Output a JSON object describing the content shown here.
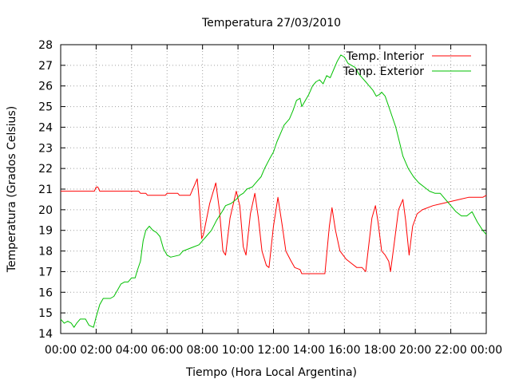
{
  "chart_data": {
    "type": "line",
    "title": "Temperatura 27/03/2010",
    "xlabel": "Tiempo (Hora Local Argentina)",
    "ylabel": "Temperatura (Grados Celsius)",
    "xlim": [
      0,
      24
    ],
    "ylim": [
      14,
      28
    ],
    "grid": true,
    "legend_position": "top-right",
    "x_ticks": [
      "00:00",
      "02:00",
      "04:00",
      "06:00",
      "08:00",
      "10:00",
      "12:00",
      "14:00",
      "16:00",
      "18:00",
      "20:00",
      "22:00",
      "00:00"
    ],
    "y_ticks": [
      "14",
      "15",
      "16",
      "17",
      "18",
      "19",
      "20",
      "21",
      "22",
      "23",
      "24",
      "25",
      "26",
      "27",
      "28"
    ],
    "series": [
      {
        "name": "Temp. Interior",
        "color": "#ff0000",
        "points": [
          [
            0,
            20.9
          ],
          [
            1.5,
            20.9
          ],
          [
            1.9,
            20.9
          ],
          [
            2.0,
            21.1
          ],
          [
            2.1,
            21.1
          ],
          [
            2.2,
            20.9
          ],
          [
            4.4,
            20.9
          ],
          [
            4.5,
            20.8
          ],
          [
            4.8,
            20.8
          ],
          [
            4.9,
            20.7
          ],
          [
            5.9,
            20.7
          ],
          [
            6.0,
            20.8
          ],
          [
            6.6,
            20.8
          ],
          [
            6.7,
            20.7
          ],
          [
            7.3,
            20.7
          ],
          [
            7.55,
            21.2
          ],
          [
            7.7,
            21.5
          ],
          [
            7.8,
            20.6
          ],
          [
            7.95,
            18.6
          ],
          [
            8.05,
            18.8
          ],
          [
            8.4,
            20.3
          ],
          [
            8.75,
            21.3
          ],
          [
            8.95,
            20.0
          ],
          [
            9.15,
            18.0
          ],
          [
            9.3,
            17.8
          ],
          [
            9.55,
            19.6
          ],
          [
            9.9,
            20.9
          ],
          [
            10.1,
            20.2
          ],
          [
            10.3,
            18.2
          ],
          [
            10.45,
            17.8
          ],
          [
            10.7,
            19.8
          ],
          [
            10.95,
            20.8
          ],
          [
            11.15,
            19.6
          ],
          [
            11.35,
            18.0
          ],
          [
            11.6,
            17.3
          ],
          [
            11.75,
            17.2
          ],
          [
            12.0,
            19.2
          ],
          [
            12.25,
            20.6
          ],
          [
            12.5,
            19.2
          ],
          [
            12.7,
            18.0
          ],
          [
            13.0,
            17.5
          ],
          [
            13.2,
            17.2
          ],
          [
            13.5,
            17.1
          ],
          [
            13.6,
            16.9
          ],
          [
            14.9,
            16.9
          ],
          [
            15.15,
            19.2
          ],
          [
            15.3,
            20.1
          ],
          [
            15.5,
            19.0
          ],
          [
            15.75,
            18.0
          ],
          [
            16.1,
            17.6
          ],
          [
            16.4,
            17.4
          ],
          [
            16.7,
            17.2
          ],
          [
            17.0,
            17.2
          ],
          [
            17.2,
            17.0
          ],
          [
            17.55,
            19.6
          ],
          [
            17.75,
            20.2
          ],
          [
            17.9,
            19.4
          ],
          [
            18.1,
            18.0
          ],
          [
            18.3,
            17.8
          ],
          [
            18.5,
            17.5
          ],
          [
            18.6,
            17.0
          ],
          [
            18.8,
            18.3
          ],
          [
            19.05,
            20.0
          ],
          [
            19.3,
            20.5
          ],
          [
            19.45,
            19.5
          ],
          [
            19.65,
            17.8
          ],
          [
            19.85,
            19.2
          ],
          [
            20.1,
            19.8
          ],
          [
            20.4,
            20.0
          ],
          [
            21.0,
            20.2
          ],
          [
            21.5,
            20.3
          ],
          [
            22.0,
            20.4
          ],
          [
            22.5,
            20.5
          ],
          [
            23.0,
            20.6
          ],
          [
            23.5,
            20.6
          ],
          [
            23.8,
            20.6
          ],
          [
            24.0,
            20.7
          ]
        ]
      },
      {
        "name": "Temp. Exterior",
        "color": "#00c000",
        "points": [
          [
            0,
            14.7
          ],
          [
            0.2,
            14.5
          ],
          [
            0.4,
            14.6
          ],
          [
            0.6,
            14.5
          ],
          [
            0.75,
            14.3
          ],
          [
            0.9,
            14.5
          ],
          [
            1.1,
            14.7
          ],
          [
            1.4,
            14.7
          ],
          [
            1.6,
            14.4
          ],
          [
            1.85,
            14.3
          ],
          [
            2.0,
            14.8
          ],
          [
            2.2,
            15.4
          ],
          [
            2.4,
            15.7
          ],
          [
            2.8,
            15.7
          ],
          [
            3.0,
            15.8
          ],
          [
            3.2,
            16.1
          ],
          [
            3.4,
            16.4
          ],
          [
            3.6,
            16.5
          ],
          [
            3.8,
            16.5
          ],
          [
            4.0,
            16.7
          ],
          [
            4.2,
            16.7
          ],
          [
            4.3,
            17.0
          ],
          [
            4.5,
            17.5
          ],
          [
            4.65,
            18.5
          ],
          [
            4.8,
            19.0
          ],
          [
            5.0,
            19.2
          ],
          [
            5.2,
            19.0
          ],
          [
            5.4,
            18.9
          ],
          [
            5.6,
            18.7
          ],
          [
            5.8,
            18.1
          ],
          [
            6.0,
            17.8
          ],
          [
            6.2,
            17.7
          ],
          [
            6.7,
            17.8
          ],
          [
            6.9,
            18.0
          ],
          [
            7.2,
            18.1
          ],
          [
            7.5,
            18.2
          ],
          [
            7.8,
            18.3
          ],
          [
            8.0,
            18.5
          ],
          [
            8.2,
            18.7
          ],
          [
            8.5,
            19.0
          ],
          [
            8.8,
            19.5
          ],
          [
            9.1,
            19.9
          ],
          [
            9.3,
            20.2
          ],
          [
            9.6,
            20.3
          ],
          [
            9.9,
            20.5
          ],
          [
            10.1,
            20.7
          ],
          [
            10.3,
            20.8
          ],
          [
            10.5,
            21.0
          ],
          [
            10.8,
            21.1
          ],
          [
            11.0,
            21.3
          ],
          [
            11.3,
            21.6
          ],
          [
            11.5,
            22.0
          ],
          [
            11.8,
            22.5
          ],
          [
            12.0,
            22.8
          ],
          [
            12.2,
            23.3
          ],
          [
            12.4,
            23.7
          ],
          [
            12.6,
            24.1
          ],
          [
            12.9,
            24.4
          ],
          [
            13.1,
            24.8
          ],
          [
            13.3,
            25.3
          ],
          [
            13.5,
            25.4
          ],
          [
            13.6,
            25.0
          ],
          [
            13.8,
            25.3
          ],
          [
            14.0,
            25.6
          ],
          [
            14.2,
            26.0
          ],
          [
            14.4,
            26.2
          ],
          [
            14.6,
            26.3
          ],
          [
            14.8,
            26.1
          ],
          [
            15.0,
            26.5
          ],
          [
            15.2,
            26.4
          ],
          [
            15.4,
            26.8
          ],
          [
            15.6,
            27.2
          ],
          [
            15.8,
            27.5
          ],
          [
            16.0,
            27.4
          ],
          [
            16.2,
            27.1
          ],
          [
            16.4,
            27.0
          ],
          [
            16.6,
            26.9
          ],
          [
            16.8,
            26.6
          ],
          [
            17.0,
            26.4
          ],
          [
            17.2,
            26.2
          ],
          [
            17.4,
            26.0
          ],
          [
            17.6,
            25.8
          ],
          [
            17.8,
            25.5
          ],
          [
            18.0,
            25.6
          ],
          [
            18.1,
            25.7
          ],
          [
            18.3,
            25.5
          ],
          [
            18.5,
            25.0
          ],
          [
            18.7,
            24.5
          ],
          [
            18.9,
            24.0
          ],
          [
            19.1,
            23.3
          ],
          [
            19.3,
            22.6
          ],
          [
            19.6,
            22.0
          ],
          [
            19.9,
            21.6
          ],
          [
            20.2,
            21.3
          ],
          [
            20.5,
            21.1
          ],
          [
            20.8,
            20.9
          ],
          [
            21.1,
            20.8
          ],
          [
            21.4,
            20.8
          ],
          [
            21.7,
            20.5
          ],
          [
            22.0,
            20.2
          ],
          [
            22.3,
            19.9
          ],
          [
            22.6,
            19.7
          ],
          [
            22.9,
            19.7
          ],
          [
            23.2,
            19.9
          ],
          [
            23.5,
            19.4
          ],
          [
            23.8,
            19.0
          ],
          [
            24.0,
            18.8
          ]
        ]
      }
    ]
  }
}
